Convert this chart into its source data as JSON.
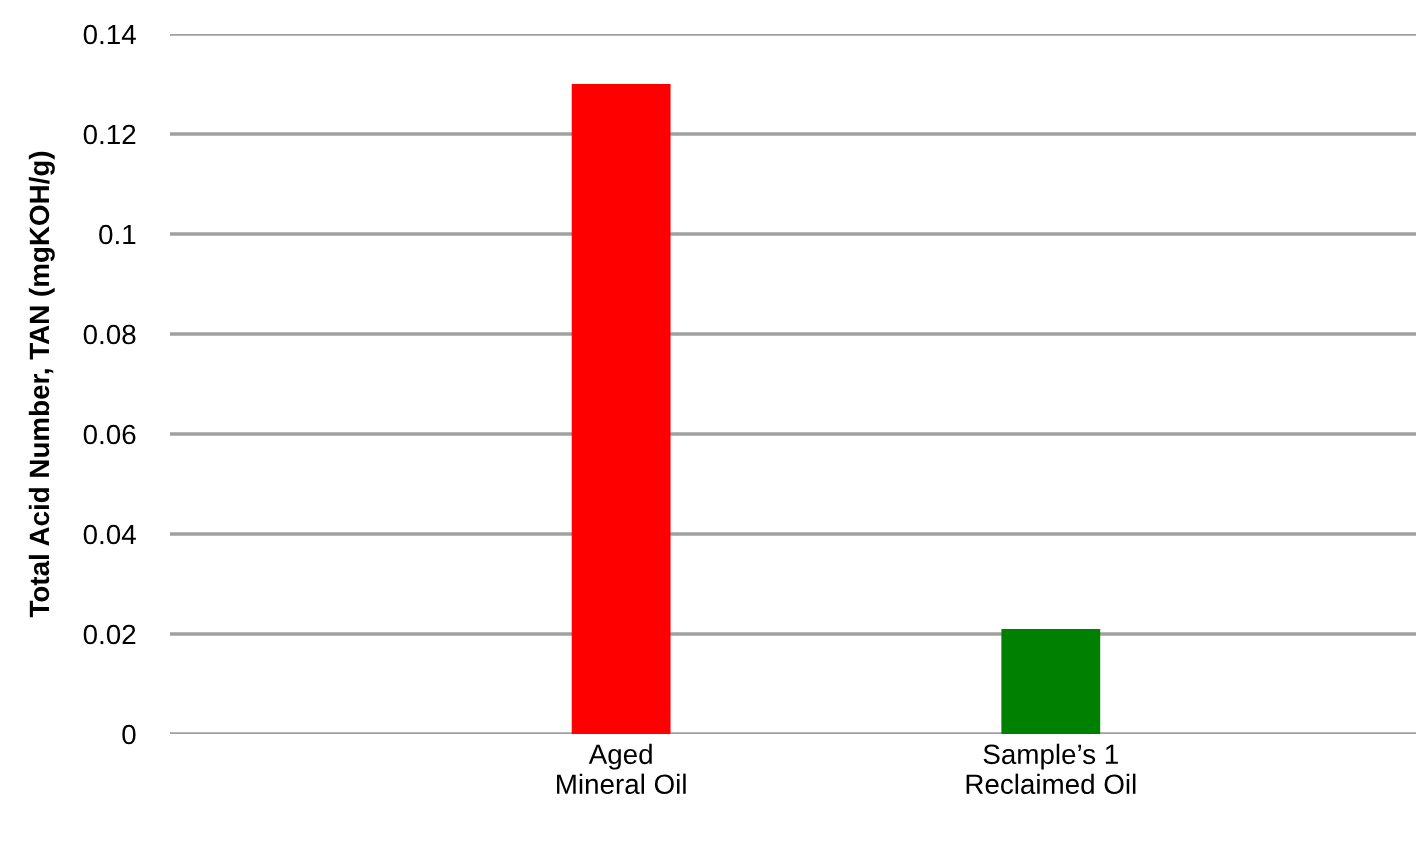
{
  "chart_data": {
    "type": "bar",
    "ylabel": "Total Acid Number, TAN (mgKOH/g)",
    "categories": [
      "Aged\nMineral Oil",
      "Sample’s 1\nReclaimed Oil"
    ],
    "values": [
      0.13,
      0.021
    ],
    "colors": [
      "#ff0000",
      "#008000"
    ],
    "ylim": [
      0,
      0.14
    ],
    "yticks": [
      0,
      0.02,
      0.04,
      0.06,
      0.08,
      0.1,
      0.12,
      0.14
    ],
    "grid": "y"
  }
}
